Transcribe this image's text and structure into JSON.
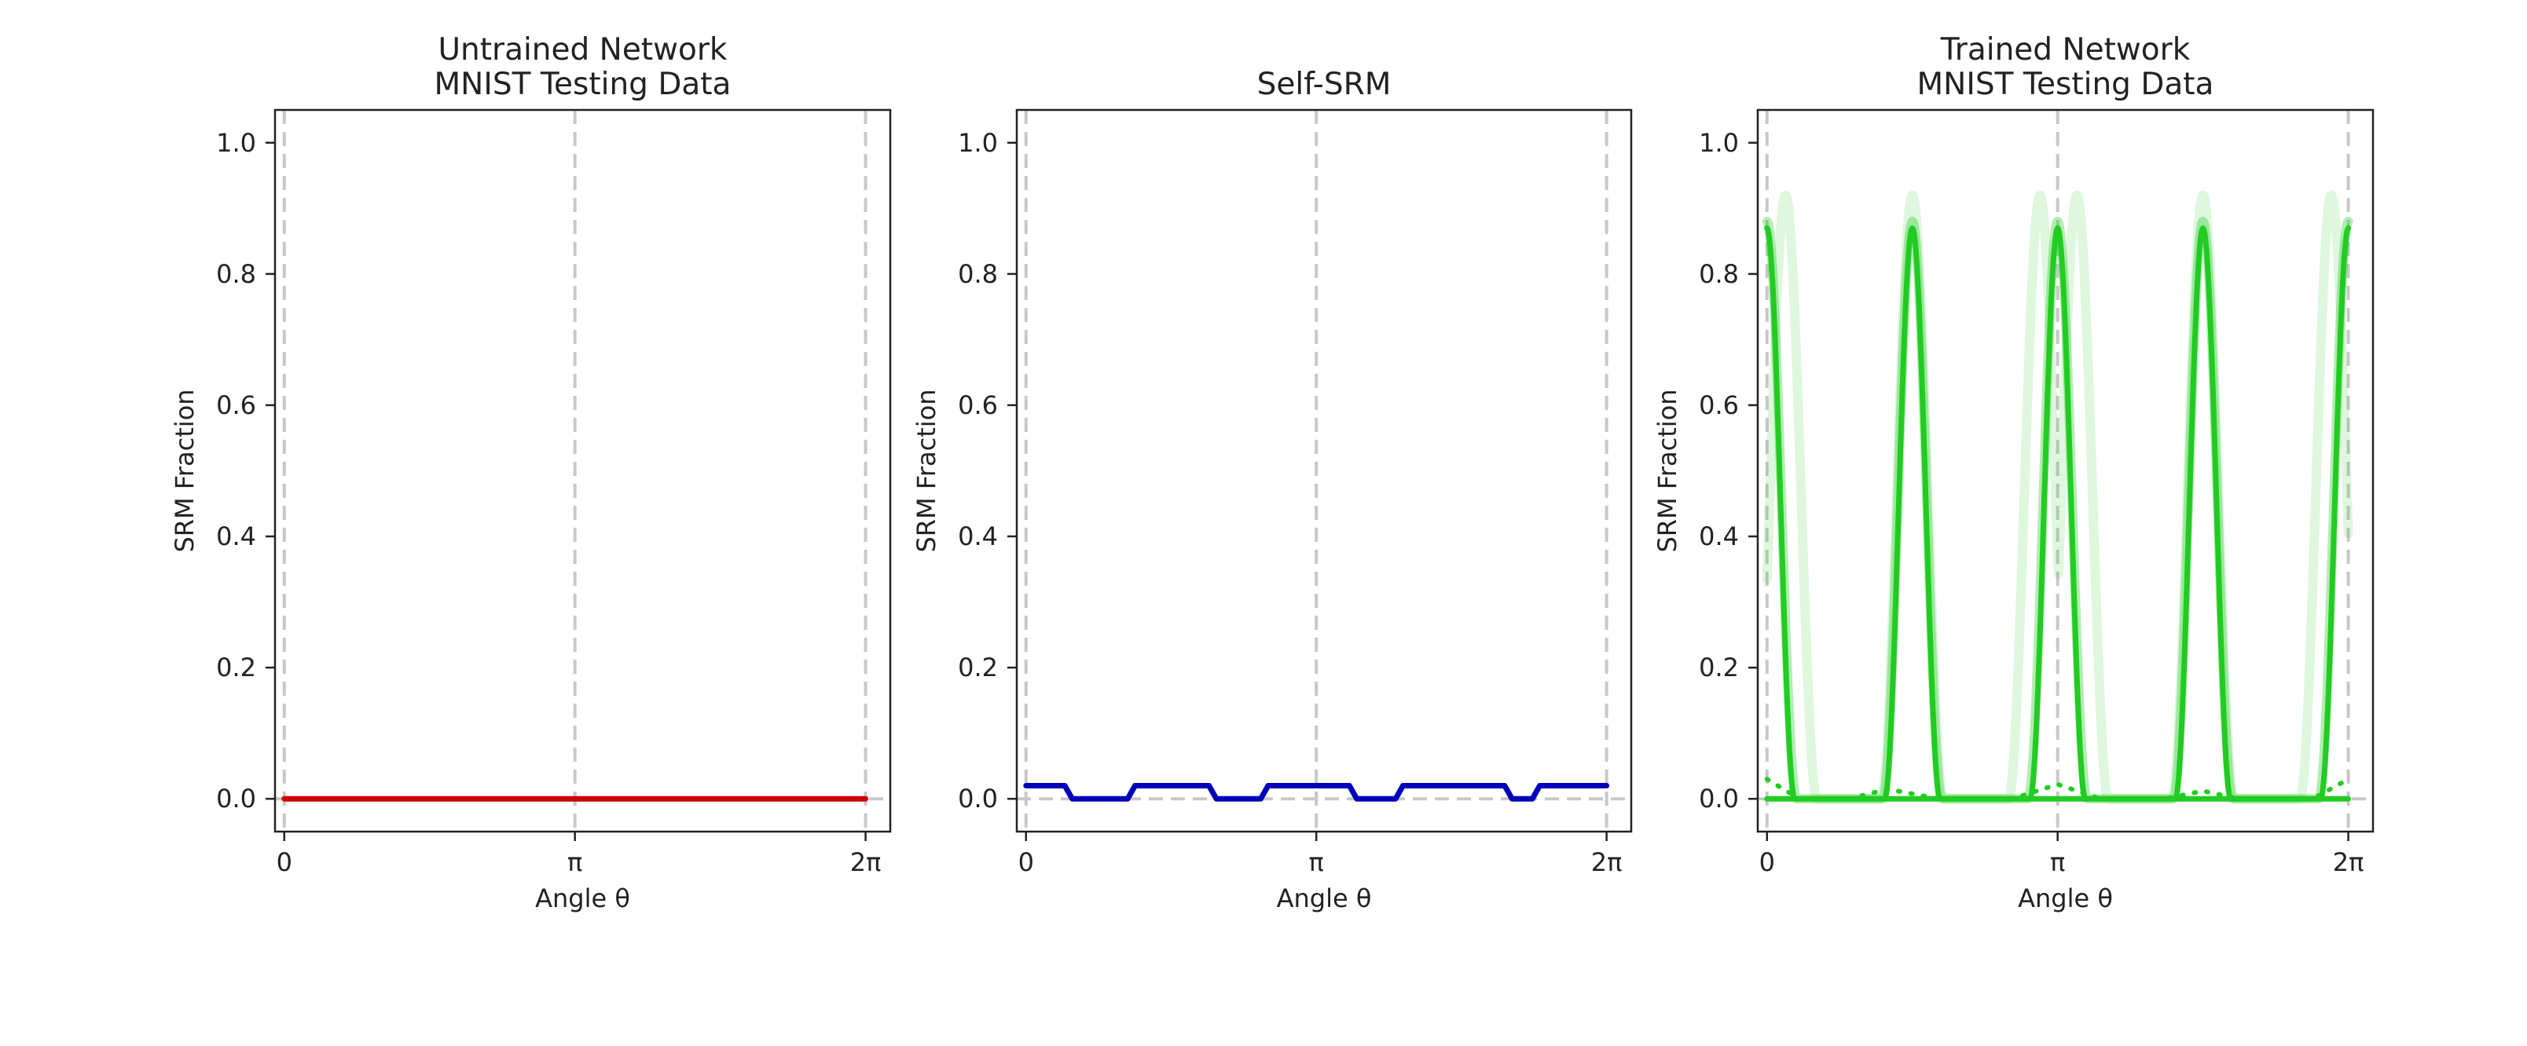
{
  "figure": {
    "panels": [
      {
        "title_line1": "Untrained Network",
        "title_line2": "MNIST Testing Data"
      },
      {
        "title_line1": "",
        "title_line2": "Self-SRM"
      },
      {
        "title_line1": "Trained Network",
        "title_line2": "MNIST Testing Data"
      }
    ]
  },
  "chart_data": [
    {
      "type": "line",
      "title": "Untrained Network\nMNIST Testing Data",
      "xlabel": "Angle θ",
      "ylabel": "SRM Fraction",
      "x_ticks": [
        "0",
        "π",
        "2π"
      ],
      "y_ticks": [
        "0.0",
        "0.2",
        "0.4",
        "0.6",
        "0.8",
        "1.0"
      ],
      "xlim": [
        -0.1,
        6.55
      ],
      "ylim": [
        -0.05,
        1.05
      ],
      "grid": "vertical dashed lines at 0, π, 2π; horizontal dashed line at 0",
      "series": [
        {
          "color": "#cc0000",
          "style": "solid",
          "x": [
            0,
            6.2832
          ],
          "y": [
            0,
            0
          ]
        }
      ]
    },
    {
      "type": "line",
      "title": "Self-SRM",
      "xlabel": "Angle θ",
      "ylabel": "SRM Fraction",
      "x_ticks": [
        "0",
        "π",
        "2π"
      ],
      "y_ticks": [
        "0.0",
        "0.2",
        "0.4",
        "0.6",
        "0.8",
        "1.0"
      ],
      "xlim": [
        -0.1,
        6.55
      ],
      "ylim": [
        -0.05,
        1.05
      ],
      "grid": "vertical dashed lines at 0, π, 2π; horizontal dashed line at 0",
      "series": [
        {
          "color": "#0000bb",
          "style": "solid",
          "x": [
            0,
            0.42,
            0.5,
            1.1,
            1.18,
            1.98,
            2.06,
            2.54,
            2.62,
            3.5,
            3.58,
            4.0,
            4.08,
            5.18,
            5.26,
            5.48,
            5.56,
            6.2832
          ],
          "y": [
            0.02,
            0.02,
            0.0,
            0.0,
            0.02,
            0.02,
            0.0,
            0.0,
            0.02,
            0.02,
            0.0,
            0.0,
            0.02,
            0.02,
            0.0,
            0.0,
            0.02,
            0.02
          ]
        }
      ]
    },
    {
      "type": "line",
      "title": "Trained Network\nMNIST Testing Data",
      "xlabel": "Angle θ",
      "ylabel": "SRM Fraction",
      "x_ticks": [
        "0",
        "π",
        "2π"
      ],
      "y_ticks": [
        "0.0",
        "0.2",
        "0.4",
        "0.6",
        "0.8",
        "1.0"
      ],
      "xlim": [
        -0.1,
        6.55
      ],
      "ylim": [
        -0.05,
        1.05
      ],
      "grid": "vertical dashed lines at 0, π, 2π; horizontal dashed line at 0",
      "series": [
        {
          "color": "#22cc22",
          "style": "solid",
          "opacity": 1.0,
          "peaks": [
            0.0,
            1.5708,
            3.1416,
            4.7124,
            6.2832
          ],
          "peak_height": 0.87,
          "half_width": 0.3
        },
        {
          "color": "#22cc22",
          "style": "faint",
          "opacity": 0.35,
          "peaks": [
            0.0,
            1.5708,
            3.1416,
            4.7124,
            6.2832
          ],
          "peak_height": 0.88,
          "half_width": 0.32
        },
        {
          "color": "#22cc22",
          "style": "faint",
          "opacity": 0.15,
          "peaks": [
            0.2,
            1.5708,
            2.95,
            3.35,
            4.7124,
            6.1
          ],
          "peak_height": 0.92,
          "half_width": 0.34
        },
        {
          "color": "#22cc22",
          "style": "dotted",
          "opacity": 1.0,
          "x": [
            0,
            0.35,
            0.9,
            1.3,
            1.85,
            2.65,
            3.1416,
            3.6,
            4.3,
            4.7124,
            5.1,
            5.9,
            6.2832
          ],
          "y": [
            0.03,
            0.0,
            0.0,
            0.015,
            0.0,
            0.0,
            0.022,
            0.0,
            0.0,
            0.012,
            0.0,
            0.0,
            0.03
          ]
        },
        {
          "color": "#22cc22",
          "style": "solid",
          "opacity": 1.0,
          "x": [
            0,
            6.2832
          ],
          "y": [
            0,
            0
          ]
        }
      ]
    }
  ]
}
